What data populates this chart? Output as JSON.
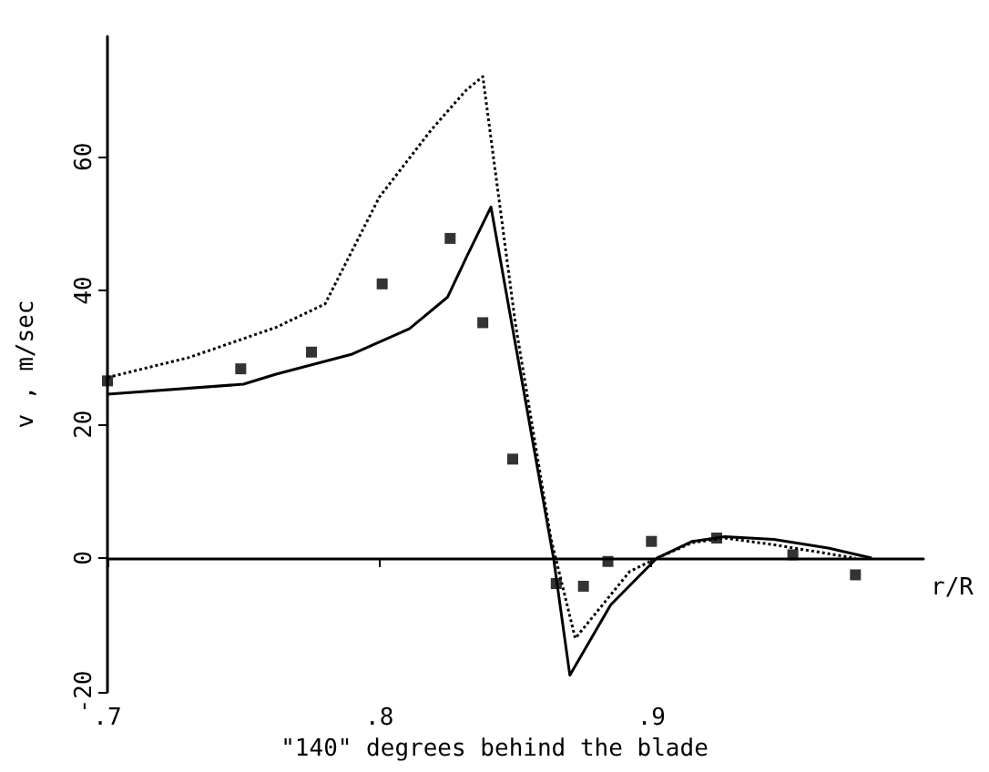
{
  "chart_data": {
    "type": "line",
    "ylabel": "v , m/sec",
    "xlabel": "r/R",
    "annotations": [
      "\"140\" degrees behind the blade"
    ],
    "xlim": [
      0.7,
      1.0
    ],
    "xticks": [
      {
        "value": 0.7,
        "label": ".7"
      },
      {
        "value": 0.8,
        "label": ".8"
      },
      {
        "value": 0.9,
        "label": ".9"
      }
    ],
    "ylim": [
      -20,
      78
    ],
    "yticks": [
      -20,
      0,
      20,
      40,
      60
    ],
    "series": [
      {
        "color": "#000000",
        "line_style": "solid",
        "marker": "none",
        "x": [
          0.7,
          0.75,
          0.762,
          0.79,
          0.811,
          0.825,
          0.832,
          0.841,
          0.864,
          0.87,
          0.885,
          0.902,
          0.915,
          0.927,
          0.945,
          0.965,
          0.981
        ],
        "values": [
          24.5,
          26,
          27.5,
          30.5,
          34.3,
          39,
          45,
          52.5,
          0,
          -17.5,
          -7,
          0,
          2.5,
          3.2,
          2.8,
          1.5,
          0
        ]
      },
      {
        "color": "#000000",
        "line_style": "dotted",
        "marker": "none",
        "x": [
          0.7,
          0.73,
          0.762,
          0.78,
          0.8,
          0.819,
          0.832,
          0.838,
          0.85,
          0.863,
          0.872,
          0.881,
          0.892,
          0.902,
          0.915,
          0.927,
          0.945,
          0.96,
          0.975
        ],
        "values": [
          27,
          30,
          34.5,
          38,
          54,
          64,
          70,
          72,
          35,
          3,
          -12,
          -7.5,
          -2,
          0,
          2.3,
          3,
          2,
          1,
          0
        ]
      },
      {
        "type": "scatter",
        "color": "#000000",
        "marker": "square",
        "x": [
          0.7,
          0.749,
          0.775,
          0.801,
          0.826,
          0.838,
          0.849,
          0.865,
          0.875,
          0.884,
          0.9,
          0.924,
          0.952,
          0.975
        ],
        "values": [
          26.5,
          28.3,
          30.8,
          41,
          47.8,
          35.2,
          14.8,
          -3.8,
          -4.2,
          -0.5,
          2.5,
          3,
          0.5,
          -2.5
        ]
      }
    ]
  }
}
